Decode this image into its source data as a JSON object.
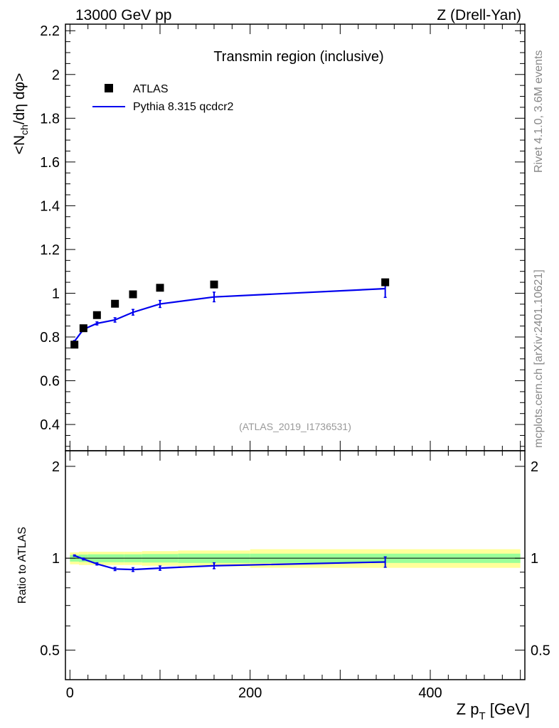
{
  "header": {
    "energy_label": "13000 GeV pp",
    "process_label": "Z (Drell-Yan)"
  },
  "side_labels": {
    "rivet": "Rivet 4.1.0,  3.6M events",
    "mcplots": "mcplots.cern.ch [arXiv:2401.10621]"
  },
  "chart_data": [
    {
      "type": "scatter",
      "panel": "main",
      "title": "Transmin region (inclusive)",
      "ylabel": "<N_ch/dη dφ>",
      "analysis_label": "(ATLAS_2019_I1736531)",
      "xlim": [
        -5,
        505
      ],
      "ylim": [
        0.28,
        2.23
      ],
      "yticks": [
        "0.4",
        "0.6",
        "0.8",
        "1",
        "1.2",
        "1.4",
        "1.6",
        "1.8",
        "2",
        "2.2"
      ],
      "legend": [
        "ATLAS",
        "Pythia 8.315 qcdcr2"
      ],
      "legend_position": "top-left",
      "series": [
        {
          "name": "ATLAS",
          "style": "markers",
          "color": "#000000",
          "x": [
            5,
            15,
            30,
            50,
            70,
            100,
            160,
            350
          ],
          "y": [
            0.765,
            0.84,
            0.9,
            0.952,
            0.995,
            1.025,
            1.04,
            1.05
          ]
        },
        {
          "name": "Pythia 8.315 qcdcr2",
          "style": "line",
          "color": "#0000ee",
          "x": [
            5,
            15,
            30,
            50,
            70,
            100,
            160,
            350
          ],
          "y": [
            0.78,
            0.835,
            0.862,
            0.878,
            0.913,
            0.951,
            0.983,
            1.021
          ],
          "yerr": [
            0.004,
            0.006,
            0.007,
            0.01,
            0.013,
            0.016,
            0.022,
            0.04
          ]
        }
      ]
    },
    {
      "type": "line",
      "panel": "ratio",
      "ylabel": "Ratio to ATLAS",
      "xlabel": "Z p_T [GeV]",
      "xlim": [
        -5,
        505
      ],
      "ylim": [
        0.4,
        2.25
      ],
      "yscale": "log",
      "xticks": [
        "0",
        "200",
        "400"
      ],
      "yticks": [
        "0.5",
        "1",
        "2"
      ],
      "reference_line": 1,
      "bands": {
        "bin_edges": [
          0,
          10,
          20,
          40,
          60,
          80,
          120,
          200,
          500
        ],
        "yellow_half_width": [
          0.045,
          0.05,
          0.05,
          0.05,
          0.05,
          0.055,
          0.06,
          0.07
        ],
        "green_half_width": [
          0.025,
          0.028,
          0.03,
          0.03,
          0.03,
          0.032,
          0.035,
          0.035
        ]
      },
      "series": [
        {
          "name": "Pythia 8.315 qcdcr2 / ATLAS",
          "color": "#0000ee",
          "x": [
            5,
            15,
            30,
            50,
            70,
            100,
            160,
            350
          ],
          "y": [
            1.02,
            0.994,
            0.958,
            0.922,
            0.918,
            0.928,
            0.945,
            0.972
          ],
          "yerr": [
            0.005,
            0.007,
            0.008,
            0.011,
            0.013,
            0.015,
            0.021,
            0.038
          ]
        }
      ]
    }
  ]
}
